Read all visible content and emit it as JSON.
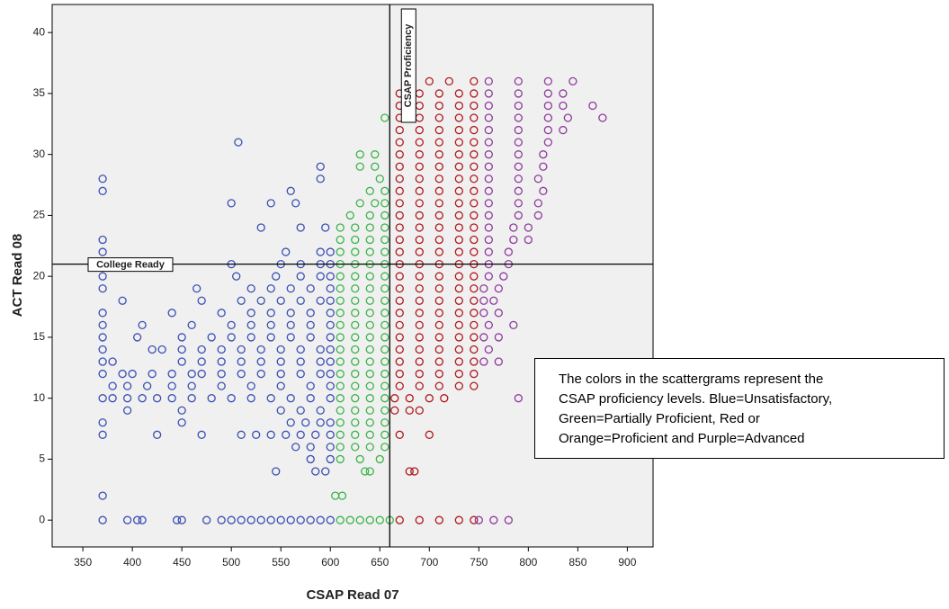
{
  "chart_data": {
    "type": "scatter",
    "x_label": "CSAP Read 07",
    "y_label": "ACT Read 08",
    "xlim": [
      319,
      926
    ],
    "ylim": [
      -2.2,
      42.3
    ],
    "xticks": [
      350,
      400,
      450,
      500,
      550,
      600,
      650,
      700,
      750,
      800,
      850,
      900
    ],
    "yticks": [
      0,
      5,
      10,
      15,
      20,
      25,
      30,
      35,
      40
    ],
    "grid": false,
    "marker": "open-circle",
    "reference_lines": [
      {
        "axis": "x",
        "value": 660,
        "label": "CSAP Proficiency"
      },
      {
        "axis": "y",
        "value": 21,
        "label": "College Ready"
      }
    ],
    "annotation": [
      "The colors in the scattergrams represent the",
      "CSAP proficiency levels.  Blue=Unsatisfactory,",
      "Green=Partially Proficient, Red or",
      "Orange=Proficient and Purple=Advanced"
    ],
    "series": [
      {
        "color": "#3a4fb4",
        "x": [
          370,
          395,
          405,
          410,
          445,
          450,
          475,
          490,
          500,
          510,
          520,
          530,
          540,
          550,
          560,
          570,
          580,
          590,
          600,
          370,
          545,
          585,
          595,
          580,
          600,
          565,
          580,
          600,
          370,
          425,
          470,
          510,
          525,
          540,
          555,
          570,
          585,
          600,
          370,
          450,
          560,
          575,
          590,
          600,
          395,
          450,
          550,
          570,
          590,
          370,
          380,
          395,
          410,
          425,
          440,
          460,
          480,
          500,
          520,
          540,
          560,
          580,
          600,
          380,
          395,
          415,
          440,
          460,
          490,
          520,
          550,
          580,
          600,
          370,
          390,
          400,
          420,
          440,
          460,
          470,
          490,
          510,
          530,
          550,
          570,
          590,
          600,
          370,
          380,
          450,
          470,
          490,
          510,
          530,
          550,
          570,
          590,
          600,
          370,
          420,
          430,
          450,
          470,
          490,
          510,
          530,
          550,
          570,
          590,
          600,
          370,
          405,
          450,
          480,
          500,
          520,
          540,
          560,
          580,
          600,
          370,
          410,
          460,
          500,
          520,
          540,
          560,
          580,
          600,
          370,
          440,
          490,
          520,
          540,
          560,
          580,
          600,
          390,
          470,
          510,
          530,
          550,
          570,
          590,
          600,
          370,
          465,
          520,
          540,
          560,
          580,
          600,
          370,
          505,
          545,
          570,
          590,
          600,
          500,
          550,
          570,
          590,
          600,
          370,
          555,
          590,
          600,
          370,
          530,
          570,
          595,
          500,
          540,
          565,
          370,
          560,
          370,
          590,
          590,
          507
        ],
        "values": [
          0,
          0,
          0,
          0,
          0,
          0,
          0,
          0,
          0,
          0,
          0,
          0,
          0,
          0,
          0,
          0,
          0,
          0,
          0,
          2,
          4,
          4,
          4,
          5,
          5,
          6,
          6,
          6,
          7,
          7,
          7,
          7,
          7,
          7,
          7,
          7,
          7,
          7,
          8,
          8,
          8,
          8,
          8,
          8,
          9,
          9,
          9,
          9,
          9,
          10,
          10,
          10,
          10,
          10,
          10,
          10,
          10,
          10,
          10,
          10,
          10,
          10,
          10,
          11,
          11,
          11,
          11,
          11,
          11,
          11,
          11,
          11,
          11,
          12,
          12,
          12,
          12,
          12,
          12,
          12,
          12,
          12,
          12,
          12,
          12,
          12,
          12,
          13,
          13,
          13,
          13,
          13,
          13,
          13,
          13,
          13,
          13,
          13,
          14,
          14,
          14,
          14,
          14,
          14,
          14,
          14,
          14,
          14,
          14,
          14,
          15,
          15,
          15,
          15,
          15,
          15,
          15,
          15,
          15,
          15,
          16,
          16,
          16,
          16,
          16,
          16,
          16,
          16,
          16,
          17,
          17,
          17,
          17,
          17,
          17,
          17,
          17,
          18,
          18,
          18,
          18,
          18,
          18,
          18,
          18,
          19,
          19,
          19,
          19,
          19,
          19,
          19,
          20,
          20,
          20,
          20,
          20,
          20,
          21,
          21,
          21,
          21,
          21,
          22,
          22,
          22,
          22,
          23,
          24,
          24,
          24,
          26,
          26,
          26,
          27,
          27,
          28,
          28,
          29,
          31
        ]
      },
      {
        "color": "#3cb44a",
        "x": [
          610,
          620,
          630,
          640,
          650,
          660,
          605,
          612,
          635,
          640,
          610,
          630,
          650,
          610,
          625,
          640,
          655,
          610,
          625,
          640,
          655,
          610,
          625,
          640,
          655,
          610,
          625,
          640,
          655,
          610,
          625,
          640,
          655,
          610,
          625,
          640,
          655,
          610,
          625,
          640,
          655,
          610,
          625,
          640,
          655,
          610,
          625,
          640,
          655,
          610,
          625,
          640,
          655,
          610,
          625,
          640,
          655,
          610,
          625,
          640,
          655,
          610,
          625,
          640,
          655,
          610,
          625,
          640,
          655,
          610,
          625,
          640,
          655,
          610,
          625,
          640,
          655,
          610,
          625,
          640,
          655,
          610,
          625,
          640,
          655,
          610,
          625,
          640,
          655,
          620,
          640,
          655,
          630,
          645,
          655,
          640,
          655,
          650,
          630,
          645,
          630,
          645,
          655
        ],
        "values": [
          0,
          0,
          0,
          0,
          0,
          0,
          2,
          2,
          4,
          4,
          5,
          5,
          5,
          6,
          6,
          6,
          6,
          7,
          7,
          7,
          7,
          8,
          8,
          8,
          8,
          9,
          9,
          9,
          9,
          10,
          10,
          10,
          10,
          11,
          11,
          11,
          11,
          12,
          12,
          12,
          12,
          13,
          13,
          13,
          13,
          14,
          14,
          14,
          14,
          15,
          15,
          15,
          15,
          16,
          16,
          16,
          16,
          17,
          17,
          17,
          17,
          18,
          18,
          18,
          18,
          19,
          19,
          19,
          19,
          20,
          20,
          20,
          20,
          21,
          21,
          21,
          21,
          22,
          22,
          22,
          22,
          23,
          23,
          23,
          23,
          24,
          24,
          24,
          24,
          25,
          25,
          25,
          26,
          26,
          26,
          27,
          27,
          28,
          29,
          29,
          30,
          30,
          33
        ]
      },
      {
        "color": "#b0191e",
        "x": [
          670,
          690,
          710,
          730,
          745,
          680,
          685,
          670,
          700,
          665,
          680,
          690,
          665,
          680,
          700,
          715,
          670,
          690,
          710,
          730,
          745,
          670,
          690,
          710,
          730,
          745,
          670,
          690,
          710,
          730,
          745,
          670,
          690,
          710,
          730,
          745,
          670,
          690,
          710,
          730,
          745,
          670,
          690,
          710,
          730,
          745,
          670,
          690,
          710,
          730,
          745,
          670,
          690,
          710,
          730,
          745,
          670,
          690,
          710,
          730,
          745,
          670,
          690,
          710,
          730,
          745,
          670,
          690,
          710,
          730,
          745,
          670,
          690,
          710,
          730,
          745,
          670,
          690,
          710,
          730,
          745,
          670,
          690,
          710,
          730,
          745,
          670,
          690,
          710,
          730,
          745,
          670,
          690,
          710,
          730,
          745,
          670,
          690,
          710,
          730,
          745,
          670,
          690,
          710,
          730,
          745,
          670,
          690,
          710,
          730,
          745,
          670,
          690,
          710,
          730,
          745,
          670,
          690,
          710,
          730,
          745,
          670,
          690,
          710,
          730,
          745,
          670,
          690,
          710,
          730,
          745,
          670,
          690,
          710,
          730,
          745,
          670,
          690,
          710,
          730,
          745,
          700,
          720,
          745
        ],
        "values": [
          0,
          0,
          0,
          0,
          0,
          4,
          4,
          7,
          7,
          9,
          9,
          9,
          10,
          10,
          10,
          10,
          11,
          11,
          11,
          11,
          11,
          12,
          12,
          12,
          12,
          12,
          13,
          13,
          13,
          13,
          13,
          14,
          14,
          14,
          14,
          14,
          15,
          15,
          15,
          15,
          15,
          16,
          16,
          16,
          16,
          16,
          17,
          17,
          17,
          17,
          17,
          18,
          18,
          18,
          18,
          18,
          19,
          19,
          19,
          19,
          19,
          20,
          20,
          20,
          20,
          20,
          21,
          21,
          21,
          21,
          21,
          22,
          22,
          22,
          22,
          22,
          23,
          23,
          23,
          23,
          23,
          24,
          24,
          24,
          24,
          24,
          25,
          25,
          25,
          25,
          25,
          26,
          26,
          26,
          26,
          26,
          27,
          27,
          27,
          27,
          27,
          28,
          28,
          28,
          28,
          28,
          29,
          29,
          29,
          29,
          29,
          30,
          30,
          30,
          30,
          30,
          31,
          31,
          31,
          31,
          31,
          32,
          32,
          32,
          32,
          32,
          33,
          33,
          33,
          33,
          33,
          34,
          34,
          34,
          34,
          34,
          35,
          35,
          35,
          35,
          35,
          36,
          36,
          36
        ]
      },
      {
        "color": "#8e3a9c",
        "x": [
          750,
          765,
          780,
          790,
          755,
          770,
          760,
          755,
          770,
          760,
          785,
          755,
          770,
          755,
          765,
          755,
          770,
          760,
          775,
          760,
          780,
          760,
          780,
          760,
          785,
          800,
          760,
          785,
          800,
          760,
          790,
          810,
          760,
          790,
          810,
          760,
          790,
          815,
          760,
          790,
          810,
          760,
          790,
          815,
          760,
          790,
          815,
          760,
          790,
          820,
          760,
          790,
          820,
          835,
          760,
          790,
          820,
          840,
          875,
          760,
          790,
          820,
          835,
          865,
          760,
          790,
          820,
          835,
          760,
          790,
          820,
          845
        ],
        "values": [
          0,
          0,
          0,
          10,
          13,
          13,
          14,
          15,
          15,
          16,
          16,
          17,
          17,
          18,
          18,
          19,
          19,
          20,
          20,
          21,
          21,
          22,
          22,
          23,
          23,
          23,
          24,
          24,
          24,
          25,
          25,
          25,
          26,
          26,
          26,
          27,
          27,
          27,
          28,
          28,
          28,
          29,
          29,
          29,
          30,
          30,
          30,
          31,
          31,
          31,
          32,
          32,
          32,
          32,
          33,
          33,
          33,
          33,
          33,
          34,
          34,
          34,
          34,
          34,
          35,
          35,
          35,
          35,
          36,
          36,
          36,
          36
        ]
      }
    ]
  }
}
